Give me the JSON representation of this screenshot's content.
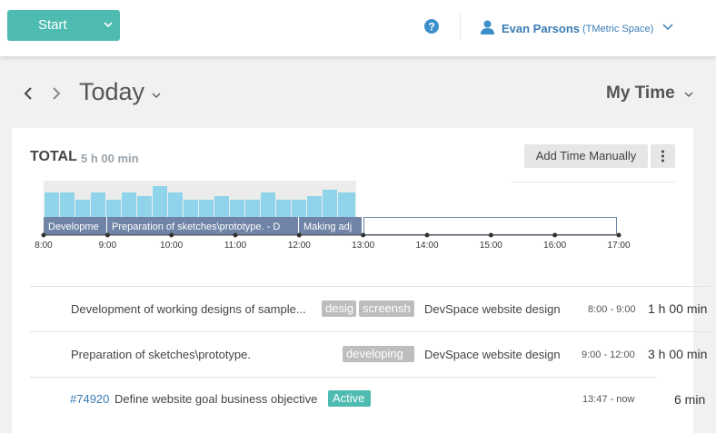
{
  "header": {
    "start_button": "Start",
    "user_name": "Evan Parsons",
    "workspace": "(TMetric Space)"
  },
  "nav": {
    "date_label": "Today",
    "view_label": "My Time"
  },
  "summary": {
    "total_label": "TOTAL",
    "total_duration": "5 h 00 min",
    "add_button": "Add Time Manually"
  },
  "timeline": {
    "segments": [
      "Developme",
      "Preparation of sketches\\prototype. - D",
      "Making adj"
    ],
    "hours": [
      "8:00",
      "9:00",
      "10:00",
      "11:00",
      "12:00",
      "13:00",
      "14:00",
      "15:00",
      "16:00",
      "17:00"
    ]
  },
  "entries": [
    {
      "task": "Development of working designs of sample...",
      "tags": [
        "desig",
        "screensh"
      ],
      "project": "DevSpace website design",
      "time_range": "8:00 - 9:00",
      "duration": "1 h 00 min"
    },
    {
      "task": "Preparation of sketches\\prototype.",
      "tags": [
        "developing"
      ],
      "project": "DevSpace website design",
      "time_range": "9:00 - 12:00",
      "duration": "3 h 00 min"
    },
    {
      "id": "#74920",
      "task": "Define website goal business objective",
      "status": "Active",
      "time_range": "13:47 - now",
      "duration": "6 min"
    }
  ]
}
